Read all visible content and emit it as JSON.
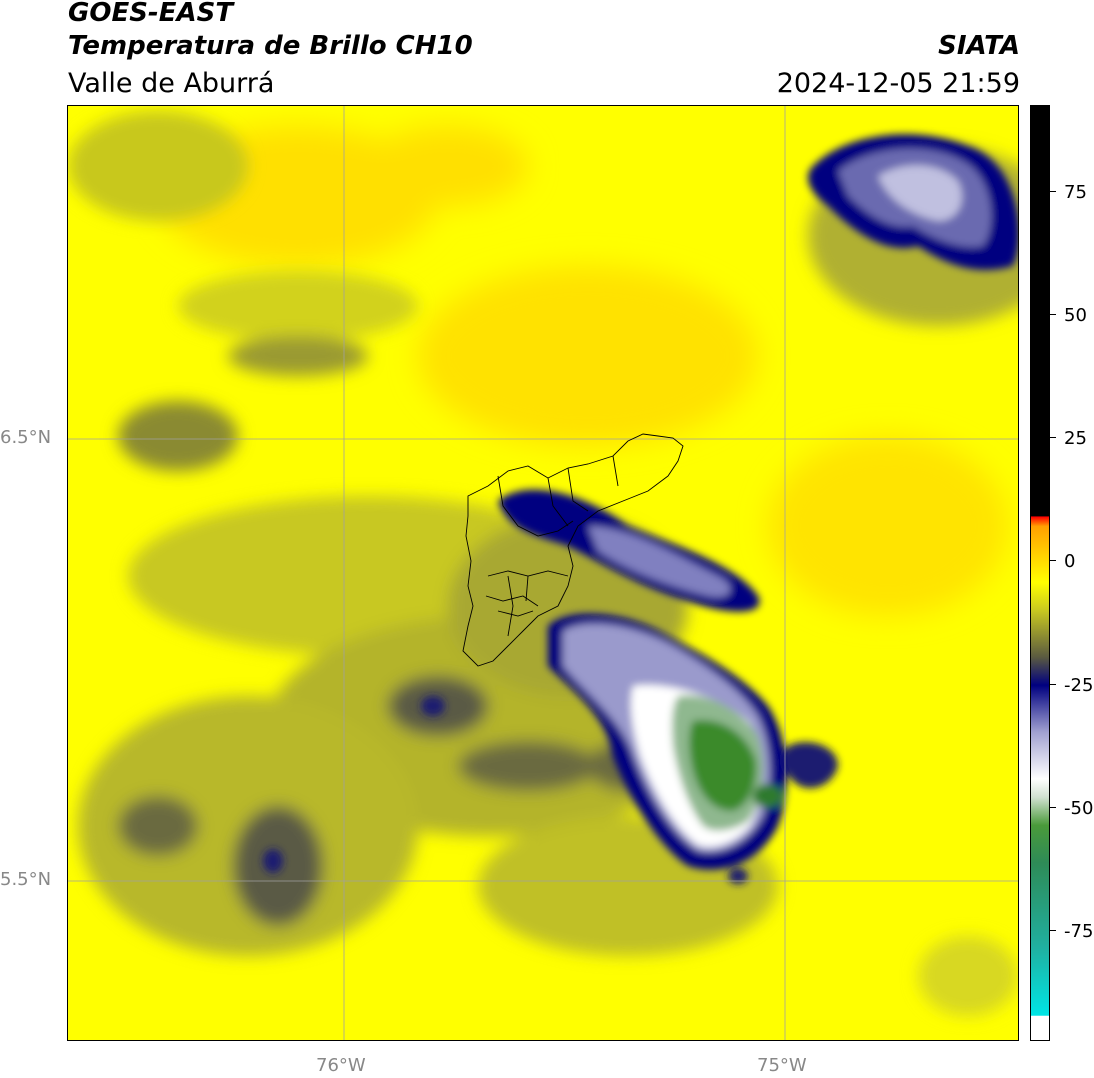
{
  "header": {
    "satellite": "GOES-EAST",
    "product": "Temperatura de Brillo CH10",
    "region": "Valle de Aburrá",
    "organization": "SIATA",
    "timestamp": "2024-12-05 21:59"
  },
  "map": {
    "lat_labels": [
      "6.5°N",
      "5.5°N"
    ],
    "lon_labels": [
      "76°W",
      "75°W"
    ]
  },
  "colorbar": {
    "ticks": [
      "75",
      "50",
      "25",
      "0",
      "-25",
      "-50",
      "-75"
    ],
    "stops": [
      "#00e5e5",
      "#2e8b57",
      "#3a8a2a",
      "#ffffff",
      "#7a7ac0",
      "#000080",
      "#5a5a2a",
      "#c8c800",
      "#ffff00",
      "#ffa000",
      "#ff0000",
      "#000000"
    ]
  }
}
